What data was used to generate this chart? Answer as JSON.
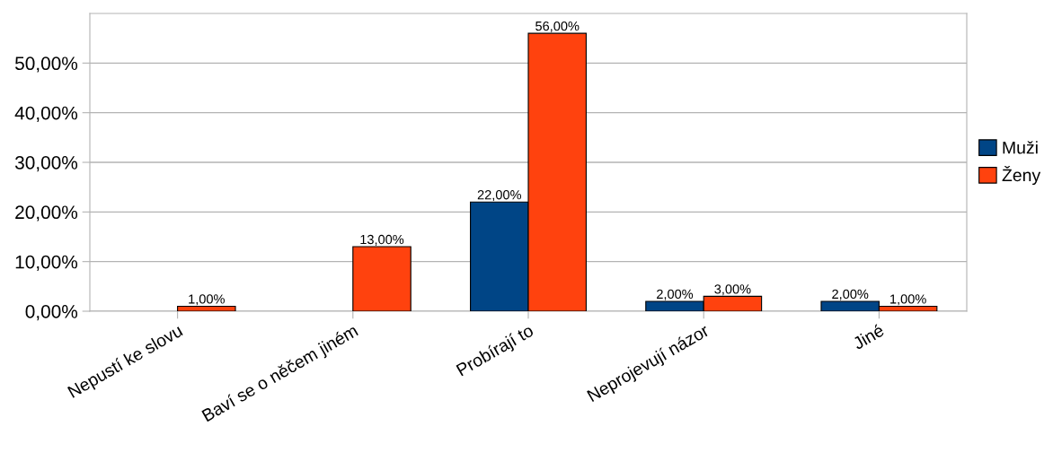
{
  "chart_data": {
    "type": "bar",
    "categories": [
      "Nepustí ke slovu",
      "Baví se o něčem jiném",
      "Probírají to",
      "Neprojevují názor",
      "Jiné"
    ],
    "series": [
      {
        "name": "Muži",
        "color": "#004586",
        "values": [
          null,
          null,
          22,
          2,
          2
        ],
        "value_labels": [
          null,
          null,
          "22,00%",
          "2,00%",
          "2,00%"
        ]
      },
      {
        "name": "Ženy",
        "color": "#ff420e",
        "values": [
          1,
          13,
          56,
          3,
          1
        ],
        "value_labels": [
          "1,00%",
          "13,00%",
          "56,00%",
          "3,00%",
          "1,00%"
        ]
      }
    ],
    "ylim": [
      0,
      60
    ],
    "yticks": [
      {
        "value": 0,
        "label": "0,00%"
      },
      {
        "value": 10,
        "label": "10,00%"
      },
      {
        "value": 20,
        "label": "20,00%"
      },
      {
        "value": 30,
        "label": "30,00%"
      },
      {
        "value": 40,
        "label": "40,00%"
      },
      {
        "value": 50,
        "label": "50,00%"
      }
    ],
    "grid": "y",
    "legend": "right"
  }
}
